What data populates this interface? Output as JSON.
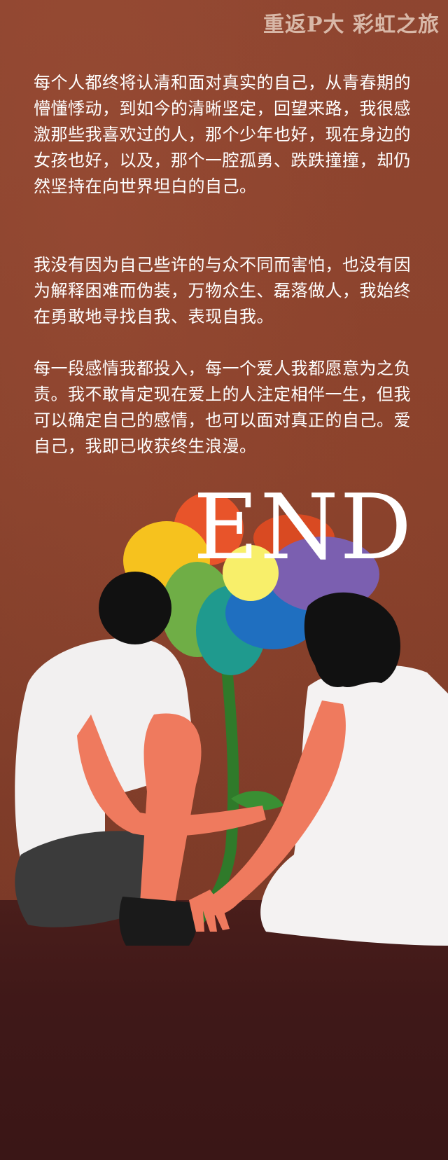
{
  "header": {
    "title": "重返P大  彩虹之旅"
  },
  "paragraphs": [
    "每个人都终将认清和面对真实的自己，从青春期的懵懂悸动，到如今的清晰坚定，回望来路，我很感激那些我喜欢过的人，那个少年也好，现在身边的女孩也好，以及，那个一腔孤勇、跌跌撞撞，却仍然坚持在向世界坦白的自己。",
    "我没有因为自己些许的与众不同而害怕，也没有因为解释困难而伪装，万物众生、磊落做人，我始终在勇敢地寻找自我、表现自我。",
    "每一段感情我都投入，每一个爱人我都愿意为之负责。我不敢肯定现在爱上的人注定相伴一生，但我可以确定自己的感情，也可以面对真正的自己。爱自己，我即已收获终生浪漫。"
  ],
  "end_text": "END",
  "colors": {
    "background": "#87412c",
    "floor": "#3f1818",
    "text": "#ffffff",
    "header_text": "#d8b8a8",
    "petal_red": "#e8542a",
    "petal_yellow": "#f6c21e",
    "petal_green": "#6fae46",
    "petal_teal": "#1f9a8e",
    "petal_blue": "#1f6fc0",
    "petal_purple": "#7b5fb0",
    "flower_center": "#f8ef6a",
    "stem": "#2f7a2a",
    "skin": "#ef7a5e",
    "shirt": "#f2f0f0",
    "hair": "#111111",
    "shorts": "#3b3b3b"
  },
  "illustration": {
    "subject": "two-people-rainbow-flower",
    "icon": "rainbow-flower-icon"
  }
}
